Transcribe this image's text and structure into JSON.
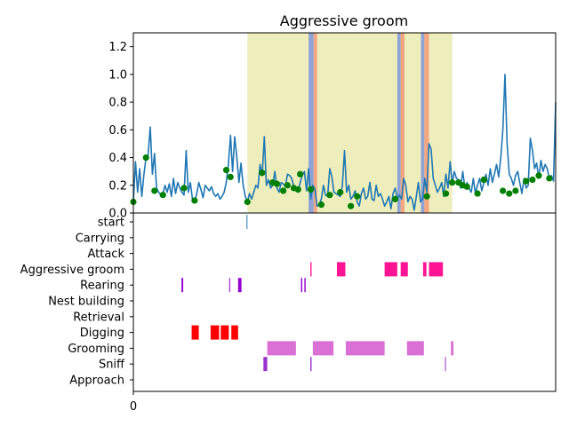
{
  "chart_data": [
    {
      "type": "line",
      "title": "Aggressive groom",
      "ylim": [
        0,
        1.3
      ],
      "yticks": [
        "0.0",
        "0.2",
        "0.4",
        "0.6",
        "0.8",
        "1.0",
        "1.2"
      ],
      "grid": false,
      "colors": {
        "line": "#1f77b4",
        "markers": "#008000",
        "span": "#e8e8a6",
        "band_blue": "#8fa4d6",
        "band_orange": "#f4a582"
      },
      "highlight_span": [
        0.27,
        0.755
      ],
      "bands": [
        {
          "x": [
            0.415,
            0.427
          ],
          "color": "band_blue"
        },
        {
          "x": [
            0.427,
            0.435
          ],
          "color": "band_orange"
        },
        {
          "x": [
            0.625,
            0.633
          ],
          "color": "band_blue"
        },
        {
          "x": [
            0.633,
            0.642
          ],
          "color": "band_orange"
        },
        {
          "x": [
            0.681,
            0.689
          ],
          "color": "band_blue"
        },
        {
          "x": [
            0.689,
            0.7
          ],
          "color": "band_orange"
        }
      ],
      "series": [
        {
          "values": [
            [
              0.0,
              0.08
            ],
            [
              0.005,
              0.37
            ],
            [
              0.01,
              0.15
            ],
            [
              0.015,
              0.32
            ],
            [
              0.02,
              0.12
            ],
            [
              0.025,
              0.28
            ],
            [
              0.03,
              0.4
            ],
            [
              0.035,
              0.42
            ],
            [
              0.04,
              0.62
            ],
            [
              0.045,
              0.28
            ],
            [
              0.05,
              0.43
            ],
            [
              0.055,
              0.18
            ],
            [
              0.06,
              0.15
            ],
            [
              0.065,
              0.13
            ],
            [
              0.07,
              0.14
            ],
            [
              0.075,
              0.2
            ],
            [
              0.08,
              0.15
            ],
            [
              0.085,
              0.21
            ],
            [
              0.09,
              0.12
            ],
            [
              0.095,
              0.25
            ],
            [
              0.1,
              0.14
            ],
            [
              0.105,
              0.22
            ],
            [
              0.11,
              0.18
            ],
            [
              0.115,
              0.15
            ],
            [
              0.12,
              0.13
            ],
            [
              0.125,
              0.45
            ],
            [
              0.13,
              0.15
            ],
            [
              0.135,
              0.22
            ],
            [
              0.14,
              0.1
            ],
            [
              0.145,
              0.08
            ],
            [
              0.15,
              0.14
            ],
            [
              0.155,
              0.22
            ],
            [
              0.16,
              0.17
            ],
            [
              0.165,
              0.11
            ],
            [
              0.17,
              0.2
            ],
            [
              0.175,
              0.18
            ],
            [
              0.18,
              0.16
            ],
            [
              0.185,
              0.19
            ],
            [
              0.19,
              0.14
            ],
            [
              0.195,
              0.12
            ],
            [
              0.2,
              0.14
            ],
            [
              0.205,
              0.1
            ],
            [
              0.21,
              0.12
            ],
            [
              0.215,
              0.15
            ],
            [
              0.22,
              0.22
            ],
            [
              0.225,
              0.35
            ],
            [
              0.23,
              0.56
            ],
            [
              0.235,
              0.3
            ],
            [
              0.24,
              0.55
            ],
            [
              0.245,
              0.4
            ],
            [
              0.25,
              0.22
            ],
            [
              0.255,
              0.36
            ],
            [
              0.26,
              0.2
            ],
            [
              0.265,
              0.12
            ],
            [
              0.27,
              0.08
            ],
            [
              0.275,
              0.14
            ],
            [
              0.28,
              0.1
            ],
            [
              0.285,
              0.15
            ],
            [
              0.29,
              0.2
            ],
            [
              0.295,
              0.18
            ],
            [
              0.3,
              0.35
            ],
            [
              0.305,
              0.27
            ],
            [
              0.31,
              0.55
            ],
            [
              0.315,
              0.2
            ],
            [
              0.32,
              0.24
            ],
            [
              0.325,
              0.18
            ],
            [
              0.33,
              0.2
            ],
            [
              0.335,
              0.3
            ],
            [
              0.34,
              0.18
            ],
            [
              0.345,
              0.15
            ],
            [
              0.35,
              0.22
            ],
            [
              0.355,
              0.21
            ],
            [
              0.36,
              0.19
            ],
            [
              0.365,
              0.28
            ],
            [
              0.37,
              0.27
            ],
            [
              0.375,
              0.25
            ],
            [
              0.38,
              0.19
            ],
            [
              0.385,
              0.16
            ],
            [
              0.39,
              0.15
            ],
            [
              0.395,
              0.22
            ],
            [
              0.4,
              0.27
            ],
            [
              0.405,
              0.3
            ],
            [
              0.41,
              0.16
            ],
            [
              0.415,
              0.32
            ],
            [
              0.42,
              0.1
            ],
            [
              0.425,
              0.2
            ],
            [
              0.43,
              0.17
            ],
            [
              0.435,
              0.05
            ],
            [
              0.44,
              0.06
            ],
            [
              0.445,
              0.1
            ],
            [
              0.45,
              0.2
            ],
            [
              0.455,
              0.13
            ],
            [
              0.46,
              0.12
            ],
            [
              0.465,
              0.32
            ],
            [
              0.47,
              0.26
            ],
            [
              0.475,
              0.15
            ],
            [
              0.48,
              0.14
            ],
            [
              0.485,
              0.13
            ],
            [
              0.49,
              0.12
            ],
            [
              0.495,
              0.2
            ],
            [
              0.5,
              0.45
            ],
            [
              0.505,
              0.15
            ],
            [
              0.51,
              0.2
            ],
            [
              0.515,
              0.1
            ],
            [
              0.52,
              0.12
            ],
            [
              0.525,
              0.16
            ],
            [
              0.53,
              0.08
            ],
            [
              0.535,
              0.05
            ],
            [
              0.54,
              0.14
            ],
            [
              0.545,
              0.18
            ],
            [
              0.55,
              0.1
            ],
            [
              0.555,
              0.12
            ],
            [
              0.56,
              0.22
            ],
            [
              0.565,
              0.1
            ],
            [
              0.57,
              0.09
            ],
            [
              0.575,
              0.2
            ],
            [
              0.58,
              0.12
            ],
            [
              0.585,
              0.14
            ],
            [
              0.59,
              0.1
            ],
            [
              0.595,
              0.05
            ],
            [
              0.6,
              0.08
            ],
            [
              0.605,
              0.12
            ],
            [
              0.61,
              0.03
            ],
            [
              0.615,
              0.14
            ],
            [
              0.62,
              0.18
            ],
            [
              0.625,
              0.1
            ],
            [
              0.63,
              0.13
            ],
            [
              0.635,
              0.1
            ],
            [
              0.64,
              0.25
            ],
            [
              0.645,
              0.2
            ],
            [
              0.65,
              0.08
            ],
            [
              0.655,
              0.12
            ],
            [
              0.66,
              0.1
            ],
            [
              0.665,
              0.02
            ],
            [
              0.67,
              0.12
            ],
            [
              0.675,
              0.22
            ],
            [
              0.68,
              0.08
            ],
            [
              0.685,
              0.1
            ],
            [
              0.69,
              0.25
            ],
            [
              0.695,
              0.15
            ],
            [
              0.7,
              0.5
            ],
            [
              0.705,
              0.46
            ],
            [
              0.71,
              0.25
            ],
            [
              0.715,
              0.2
            ],
            [
              0.72,
              0.15
            ],
            [
              0.725,
              0.18
            ],
            [
              0.73,
              0.22
            ],
            [
              0.735,
              0.12
            ],
            [
              0.74,
              0.28
            ],
            [
              0.745,
              0.18
            ],
            [
              0.75,
              0.37
            ],
            [
              0.755,
              0.22
            ],
            [
              0.76,
              0.3
            ],
            [
              0.765,
              0.25
            ],
            [
              0.77,
              0.24
            ],
            [
              0.775,
              0.18
            ],
            [
              0.78,
              0.3
            ],
            [
              0.785,
              0.18
            ],
            [
              0.79,
              0.22
            ],
            [
              0.795,
              0.18
            ],
            [
              0.8,
              0.15
            ],
            [
              0.805,
              0.25
            ],
            [
              0.81,
              0.14
            ],
            [
              0.815,
              0.2
            ],
            [
              0.82,
              0.25
            ],
            [
              0.825,
              0.16
            ],
            [
              0.83,
              0.22
            ],
            [
              0.835,
              0.28
            ],
            [
              0.84,
              0.2
            ],
            [
              0.845,
              0.32
            ],
            [
              0.85,
              0.22
            ],
            [
              0.855,
              0.28
            ],
            [
              0.86,
              0.35
            ],
            [
              0.865,
              0.26
            ],
            [
              0.87,
              0.4
            ],
            [
              0.875,
              0.6
            ],
            [
              0.88,
              1.0
            ],
            [
              0.885,
              0.5
            ],
            [
              0.89,
              0.28
            ],
            [
              0.895,
              0.25
            ],
            [
              0.9,
              0.2
            ],
            [
              0.905,
              0.27
            ],
            [
              0.91,
              0.3
            ],
            [
              0.915,
              0.22
            ],
            [
              0.92,
              0.14
            ],
            [
              0.925,
              0.25
            ],
            [
              0.93,
              0.18
            ],
            [
              0.935,
              0.2
            ],
            [
              0.94,
              0.54
            ],
            [
              0.945,
              0.45
            ],
            [
              0.95,
              0.32
            ],
            [
              0.955,
              0.36
            ],
            [
              0.96,
              0.25
            ],
            [
              0.965,
              0.38
            ],
            [
              0.97,
              0.3
            ],
            [
              0.975,
              0.35
            ],
            [
              0.98,
              0.32
            ],
            [
              0.985,
              0.25
            ],
            [
              0.99,
              0.27
            ],
            [
              0.995,
              0.23
            ],
            [
              1.0,
              0.8
            ]
          ]
        }
      ],
      "markers": [
        [
          0.0,
          0.08
        ],
        [
          0.03,
          0.4
        ],
        [
          0.05,
          0.16
        ],
        [
          0.07,
          0.13
        ],
        [
          0.12,
          0.18
        ],
        [
          0.145,
          0.09
        ],
        [
          0.22,
          0.31
        ],
        [
          0.23,
          0.26
        ],
        [
          0.27,
          0.08
        ],
        [
          0.305,
          0.29
        ],
        [
          0.33,
          0.22
        ],
        [
          0.34,
          0.21
        ],
        [
          0.355,
          0.16
        ],
        [
          0.365,
          0.2
        ],
        [
          0.38,
          0.18
        ],
        [
          0.39,
          0.17
        ],
        [
          0.395,
          0.28
        ],
        [
          0.42,
          0.17
        ],
        [
          0.445,
          0.06
        ],
        [
          0.465,
          0.13
        ],
        [
          0.49,
          0.15
        ],
        [
          0.515,
          0.05
        ],
        [
          0.53,
          0.12
        ],
        [
          0.62,
          0.1
        ],
        [
          0.695,
          0.12
        ],
        [
          0.74,
          0.14
        ],
        [
          0.755,
          0.22
        ],
        [
          0.77,
          0.22
        ],
        [
          0.78,
          0.2
        ],
        [
          0.79,
          0.19
        ],
        [
          0.815,
          0.14
        ],
        [
          0.83,
          0.24
        ],
        [
          0.875,
          0.16
        ],
        [
          0.89,
          0.14
        ],
        [
          0.905,
          0.16
        ],
        [
          0.93,
          0.23
        ],
        [
          0.945,
          0.24
        ],
        [
          0.96,
          0.27
        ],
        [
          0.985,
          0.25
        ]
      ]
    },
    {
      "type": "bar",
      "subtype": "ethogram",
      "categories": [
        "start",
        "Carrying",
        "Attack",
        "Aggressive groom",
        "Rearing",
        "Nest building",
        "Retrieval",
        "Digging",
        "Grooming",
        "Sniff",
        "Approach"
      ],
      "xticks": [
        "0"
      ],
      "tracks": [
        {
          "category": "start",
          "color": "#1f77b4",
          "intervals": [
            [
              0.268,
              0.27
            ]
          ]
        },
        {
          "category": "Aggressive groom",
          "color": "#ff1493",
          "intervals": [
            [
              0.419,
              0.422
            ],
            [
              0.482,
              0.502
            ],
            [
              0.595,
              0.625
            ],
            [
              0.633,
              0.65
            ],
            [
              0.686,
              0.694
            ],
            [
              0.7,
              0.733
            ]
          ]
        },
        {
          "category": "Rearing",
          "color": "#9400d3",
          "intervals": [
            [
              0.114,
              0.118
            ],
            [
              0.227,
              0.229
            ],
            [
              0.248,
              0.256
            ],
            [
              0.397,
              0.4
            ],
            [
              0.405,
              0.408
            ]
          ]
        },
        {
          "category": "Digging",
          "color": "#ff0000",
          "intervals": [
            [
              0.138,
              0.155
            ],
            [
              0.183,
              0.203
            ],
            [
              0.207,
              0.226
            ],
            [
              0.232,
              0.248
            ]
          ]
        },
        {
          "category": "Grooming",
          "color": "#da70d6",
          "intervals": [
            [
              0.317,
              0.385
            ],
            [
              0.425,
              0.474
            ],
            [
              0.503,
              0.595
            ],
            [
              0.648,
              0.688
            ],
            [
              0.752,
              0.758
            ]
          ]
        },
        {
          "category": "Sniff",
          "color": "#9932cc",
          "intervals": [
            [
              0.308,
              0.317
            ],
            [
              0.419,
              0.422
            ],
            [
              0.738,
              0.74
            ]
          ]
        }
      ]
    }
  ]
}
